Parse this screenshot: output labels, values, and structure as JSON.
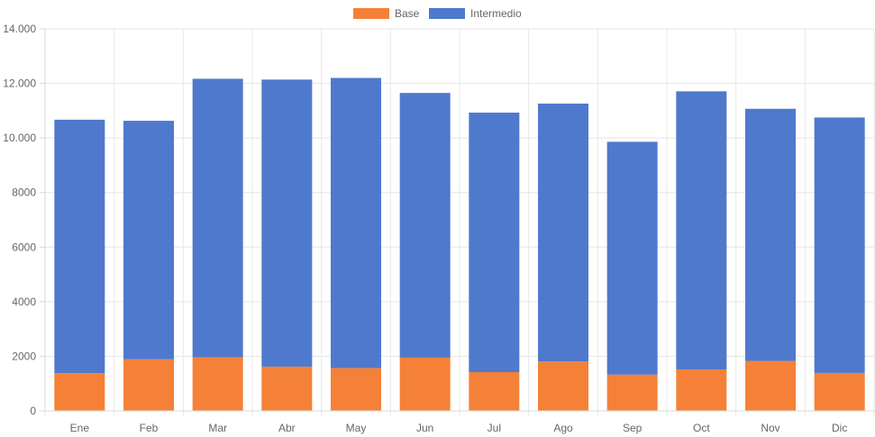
{
  "chart_data": {
    "type": "bar",
    "stacked": true,
    "categories": [
      "Ene",
      "Feb",
      "Mar",
      "Abr",
      "May",
      "Jun",
      "Jul",
      "Ago",
      "Sep",
      "Oct",
      "Nov",
      "Dic"
    ],
    "series": [
      {
        "name": "Base",
        "color": "#f58138",
        "values": [
          1380,
          1890,
          1960,
          1620,
          1570,
          1950,
          1420,
          1810,
          1330,
          1520,
          1830,
          1390
        ]
      },
      {
        "name": "Intermedio",
        "color": "#4f79cd",
        "values": [
          9290,
          8740,
          10210,
          10520,
          10630,
          9700,
          9510,
          9450,
          8530,
          10190,
          9240,
          9360
        ]
      }
    ],
    "title": "",
    "xlabel": "",
    "ylabel": "",
    "ylim": [
      0,
      14000
    ],
    "yticks": [
      0,
      2000,
      4000,
      6000,
      8000,
      10000,
      12000,
      14000
    ],
    "ytick_labels": [
      "0",
      "2000",
      "4000",
      "6000",
      "8000",
      "10.000",
      "12.000",
      "14.000"
    ],
    "grid": true,
    "legend_position": "top-center"
  }
}
